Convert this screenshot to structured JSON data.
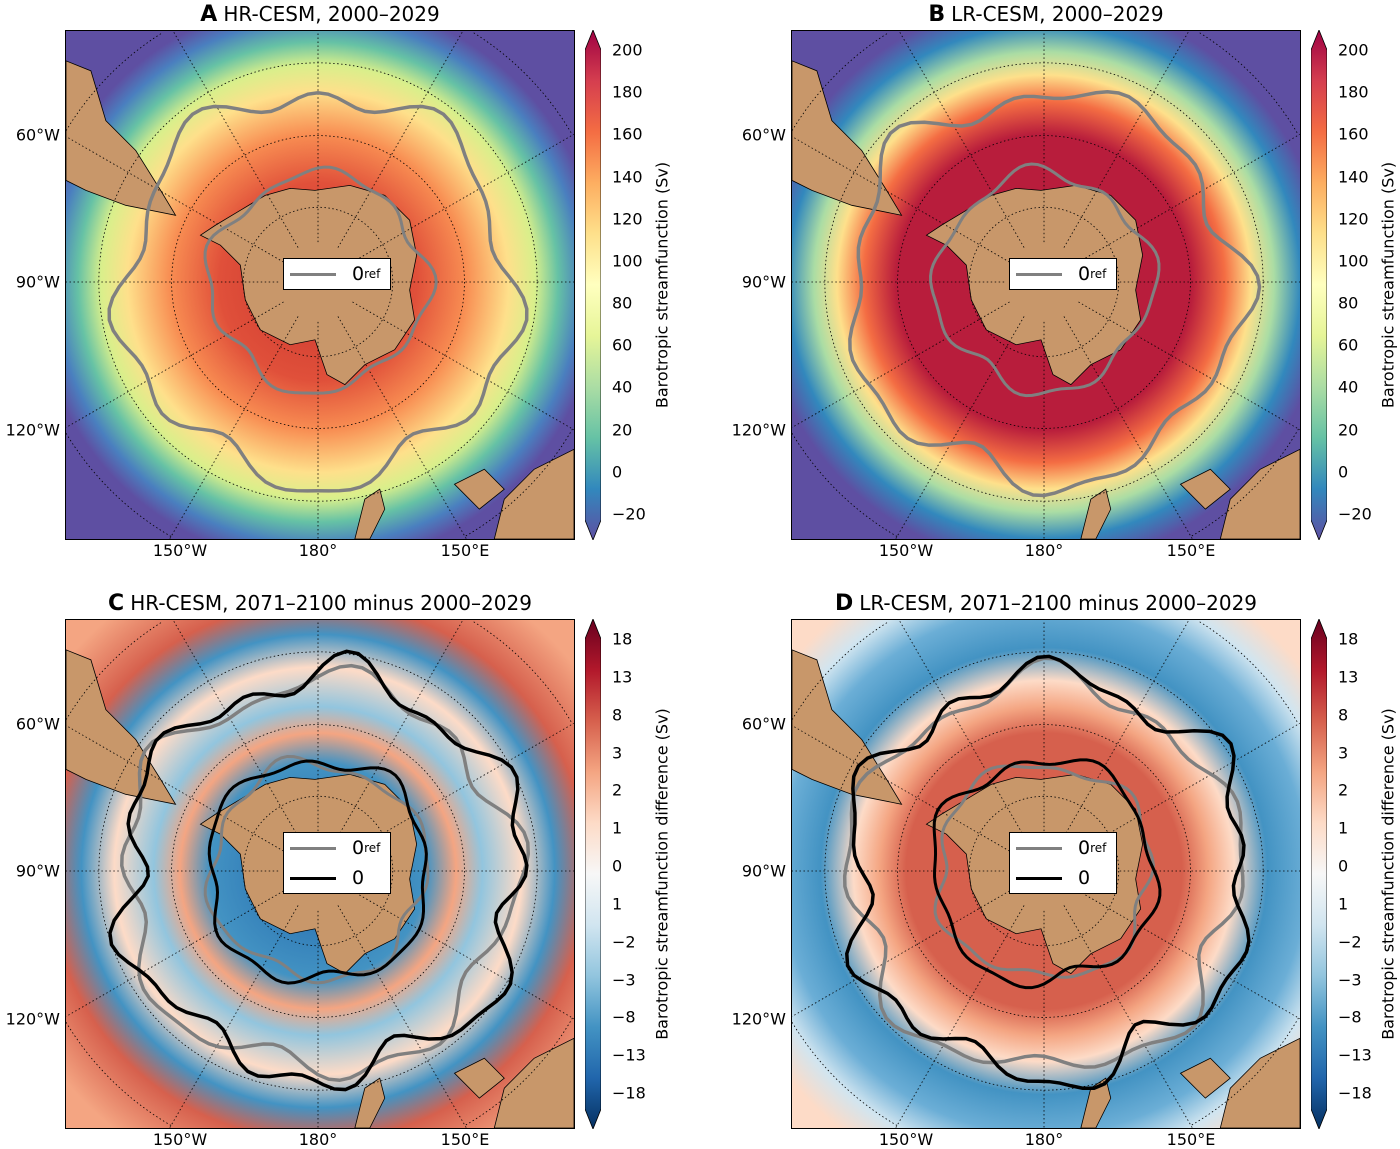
{
  "panels": [
    {
      "letter": "A",
      "title": "HR-CESM, 2000–2029",
      "kind": "mean",
      "hr": true,
      "cbar_ticks": [
        "200",
        "180",
        "160",
        "140",
        "120",
        "100",
        "80",
        "60",
        "40",
        "20",
        "0",
        "−20"
      ],
      "cbar_label": "Barotropic streamfunction (Sv)",
      "legend": [
        {
          "label": "0",
          "sub": "ref",
          "color": "#808080"
        }
      ]
    },
    {
      "letter": "B",
      "title": "LR-CESM, 2000–2029",
      "kind": "mean",
      "hr": false,
      "cbar_ticks": [
        "200",
        "180",
        "160",
        "140",
        "120",
        "100",
        "80",
        "60",
        "40",
        "20",
        "0",
        "−20"
      ],
      "cbar_label": "Barotropic streamfunction (Sv)",
      "legend": [
        {
          "label": "0",
          "sub": "ref",
          "color": "#808080"
        }
      ]
    },
    {
      "letter": "C",
      "title": "HR-CESM, 2071–2100 minus 2000–2029",
      "kind": "diff",
      "hr": true,
      "cbar_ticks": [
        "18",
        "13",
        "8",
        "3",
        "2",
        "1",
        "0",
        "1",
        "−2",
        "−3",
        "−8",
        "−13",
        "−18"
      ],
      "cbar_label": "Barotropic streamfunction difference (Sv)",
      "legend": [
        {
          "label": "0",
          "sub": "ref",
          "color": "#808080"
        },
        {
          "label": "0",
          "sub": "",
          "color": "#000000"
        }
      ]
    },
    {
      "letter": "D",
      "title": "LR-CESM, 2071–2100 minus 2000–2029",
      "kind": "diff",
      "hr": false,
      "cbar_ticks": [
        "18",
        "13",
        "8",
        "3",
        "2",
        "1",
        "0",
        "1",
        "−2",
        "−3",
        "−8",
        "−13",
        "−18"
      ],
      "cbar_label": "Barotropic streamfunction difference (Sv)",
      "legend": [
        {
          "label": "0",
          "sub": "ref",
          "color": "#808080"
        },
        {
          "label": "0",
          "sub": "",
          "color": "#000000"
        }
      ]
    }
  ],
  "lat_labels": [
    "60°W",
    "90°W",
    "120°W"
  ],
  "lon_labels": [
    "150°W",
    "180°",
    "150°E"
  ],
  "colors": {
    "land": "#c8976a",
    "ref_contour": "#808080",
    "zero_contour": "#000000"
  }
}
